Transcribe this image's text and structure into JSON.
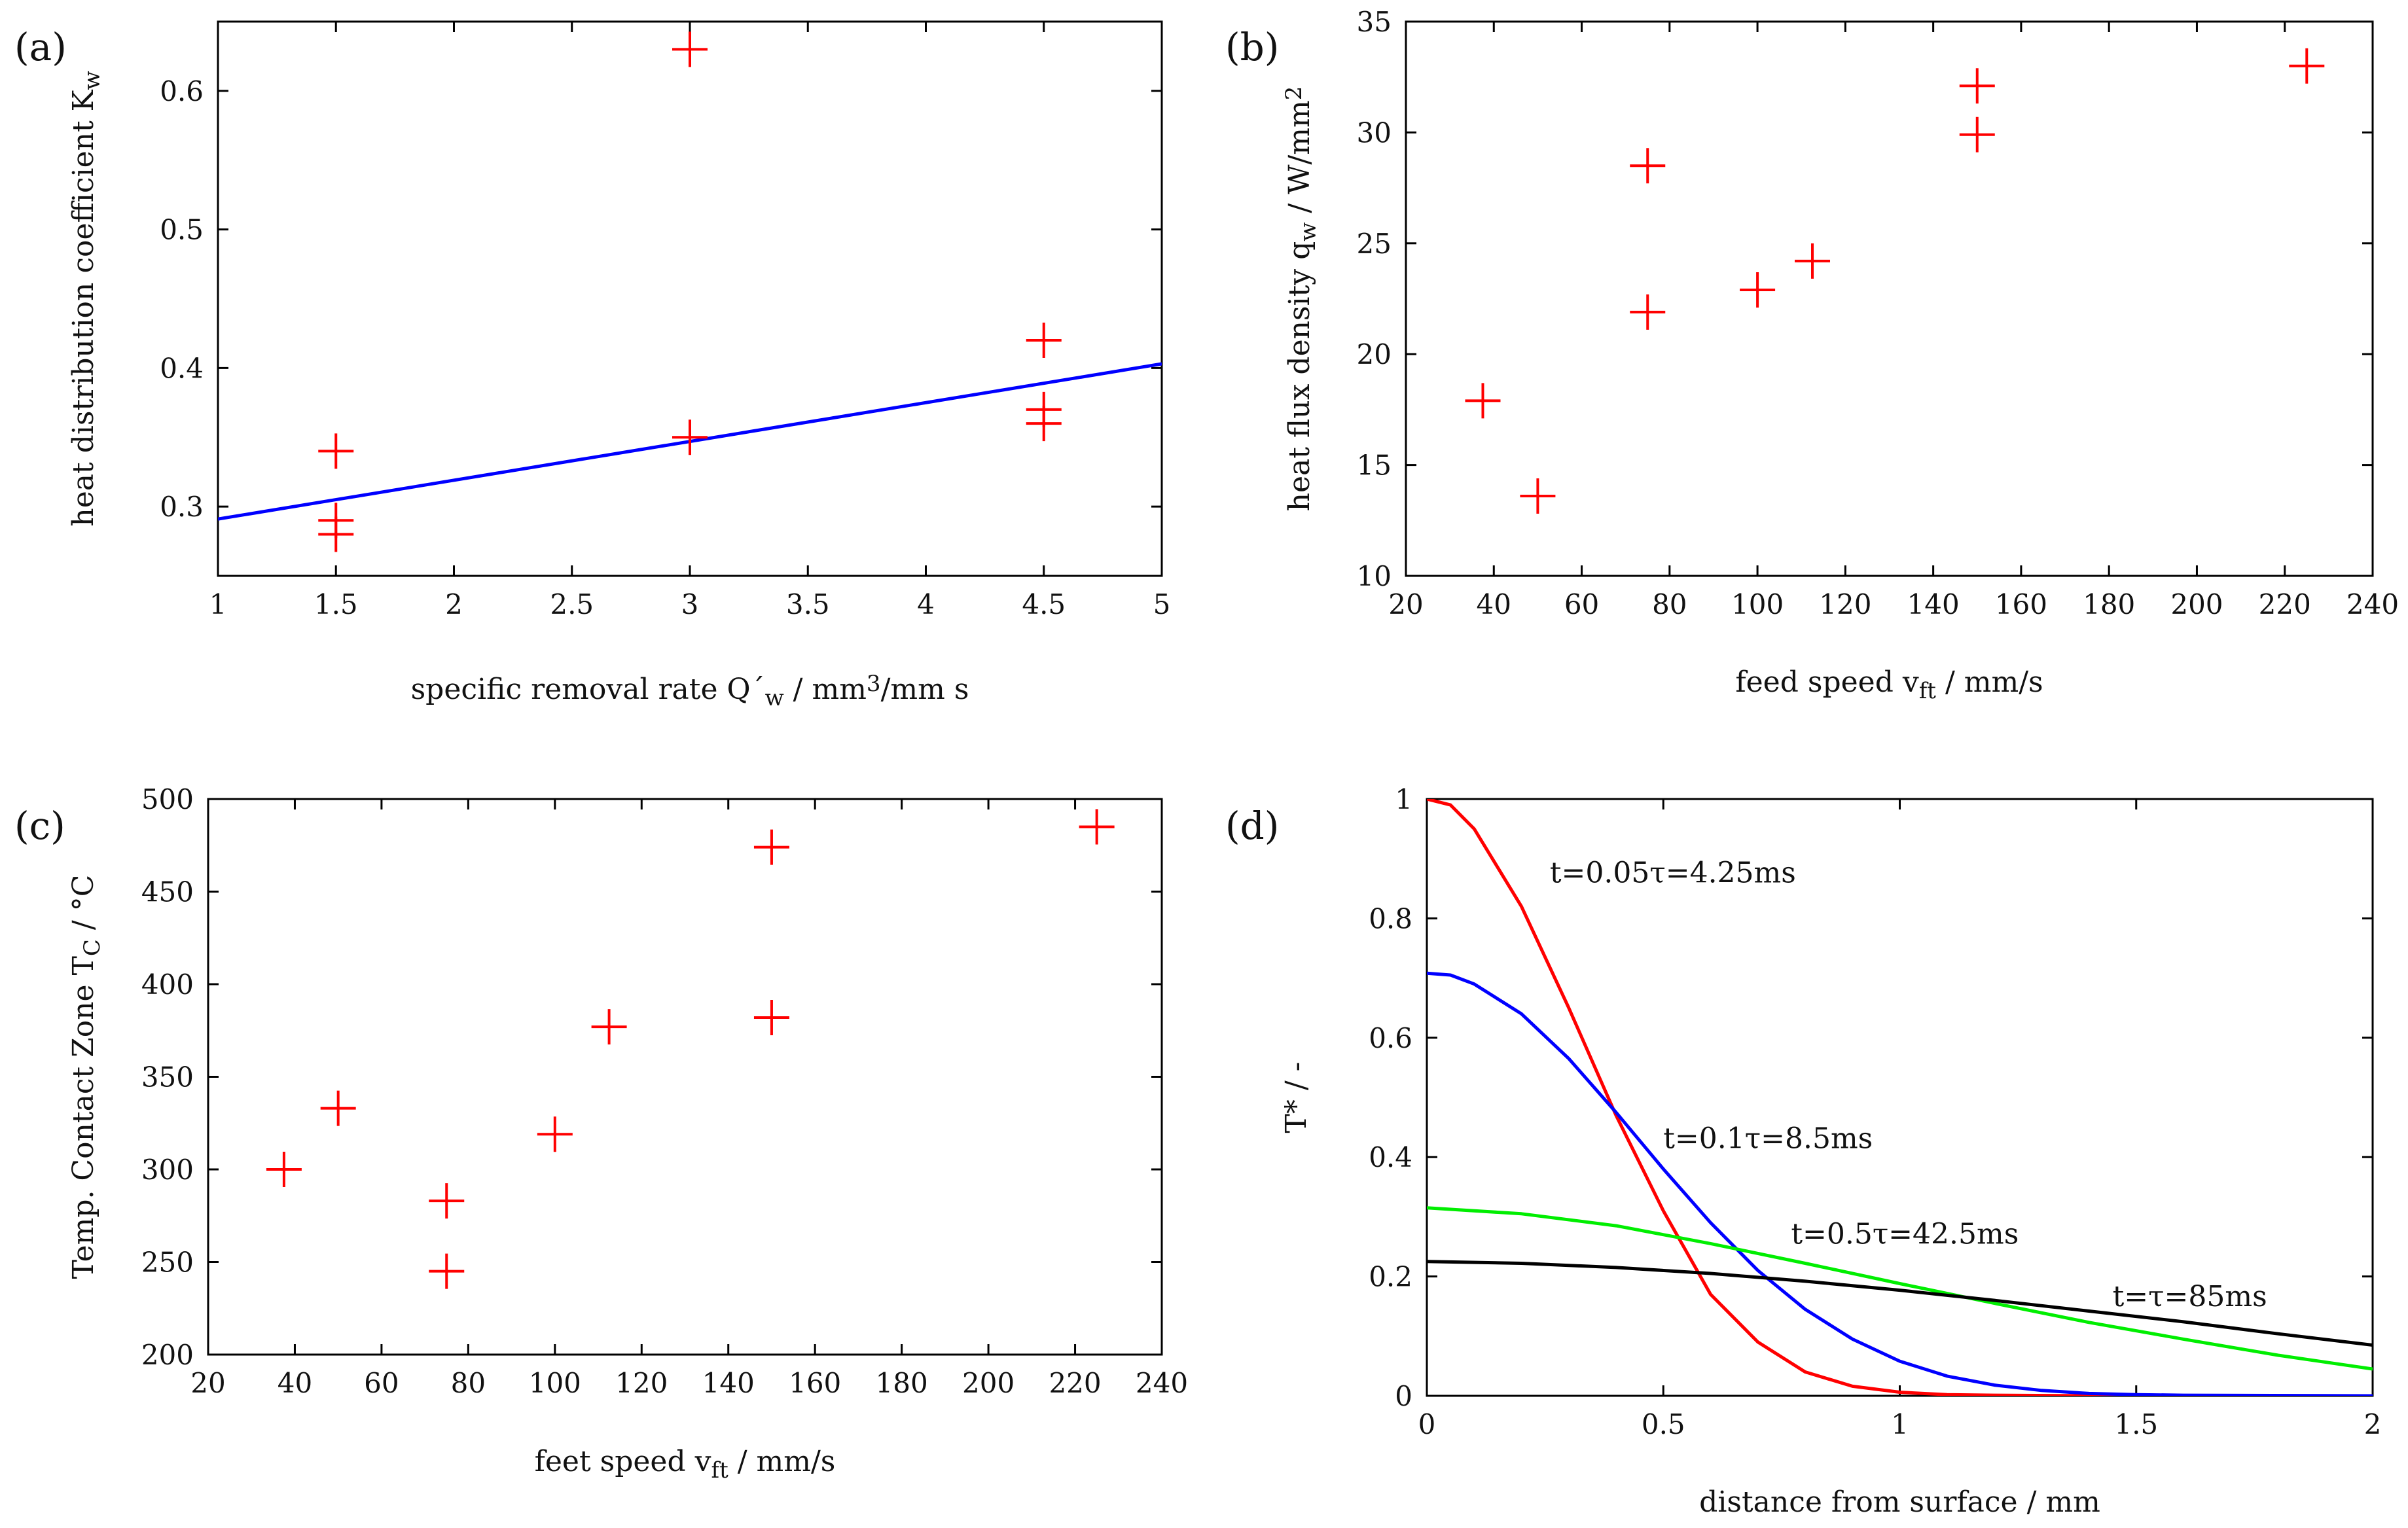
{
  "chart_data": [
    {
      "id": "a",
      "panel_label": "(a)",
      "type": "scatter",
      "title": "",
      "xlabel": "specific removal rate Q´w / mm3/mm s",
      "xlabel_parts": [
        "specific removal rate Q´",
        "w",
        " / mm",
        "3",
        "/mm s"
      ],
      "ylabel": "heat distribution coefficient Kw",
      "ylabel_parts": [
        "heat distribution coefficient K",
        "w"
      ],
      "xlim": [
        1,
        5
      ],
      "ylim": [
        0.25,
        0.65
      ],
      "xticks": [
        1,
        1.5,
        2,
        2.5,
        3,
        3.5,
        4,
        4.5,
        5
      ],
      "xtick_labels": [
        "1",
        "1.5",
        "2",
        "2.5",
        "3",
        "3.5",
        "4",
        "4.5",
        "5"
      ],
      "yticks": [
        0.3,
        0.4,
        0.5,
        0.6
      ],
      "ytick_labels": [
        "0.3",
        "0.4",
        "0.5",
        "0.6"
      ],
      "grid": false,
      "points": [
        {
          "x": 1.5,
          "y": 0.34
        },
        {
          "x": 1.5,
          "y": 0.29
        },
        {
          "x": 1.5,
          "y": 0.28
        },
        {
          "x": 3,
          "y": 0.63
        },
        {
          "x": 3,
          "y": 0.35
        },
        {
          "x": 4.5,
          "y": 0.42
        },
        {
          "x": 4.5,
          "y": 0.37
        },
        {
          "x": 4.5,
          "y": 0.36
        }
      ],
      "point_color": "#ff0000",
      "fit_line": {
        "x": [
          1,
          5
        ],
        "y": [
          0.291,
          0.403
        ],
        "color": "#0000ff"
      }
    },
    {
      "id": "b",
      "panel_label": "(b)",
      "type": "scatter",
      "title": "",
      "xlabel": "feed speed vft /  mm/s",
      "xlabel_parts": [
        "feed speed v",
        "ft",
        " /  mm/s"
      ],
      "ylabel": "heat flux density qw / W/mm2",
      "ylabel_parts": [
        "heat flux density q",
        "w",
        " / W/mm",
        "2"
      ],
      "xlim": [
        20,
        240
      ],
      "ylim": [
        10,
        35
      ],
      "xticks": [
        20,
        40,
        60,
        80,
        100,
        120,
        140,
        160,
        180,
        200,
        220,
        240
      ],
      "xtick_labels": [
        "20",
        "40",
        "60",
        "80",
        "100",
        "120",
        "140",
        "160",
        "180",
        "200",
        "220",
        "240"
      ],
      "yticks": [
        10,
        15,
        20,
        25,
        30,
        35
      ],
      "ytick_labels": [
        "10",
        "15",
        "20",
        "25",
        "30",
        "35"
      ],
      "grid": false,
      "points": [
        {
          "x": 37.5,
          "y": 17.9
        },
        {
          "x": 50,
          "y": 13.6
        },
        {
          "x": 75,
          "y": 28.5
        },
        {
          "x": 75,
          "y": 21.9
        },
        {
          "x": 100,
          "y": 22.9
        },
        {
          "x": 112.5,
          "y": 24.2
        },
        {
          "x": 150,
          "y": 32.1
        },
        {
          "x": 150,
          "y": 29.9
        },
        {
          "x": 225,
          "y": 33
        }
      ],
      "point_color": "#ff0000"
    },
    {
      "id": "c",
      "panel_label": "(c)",
      "type": "scatter",
      "title": "",
      "xlabel": "feet speed vft / mm/s",
      "xlabel_parts": [
        "feet speed v",
        "ft",
        " / mm/s"
      ],
      "ylabel": "Temp. Contact Zone TC / °C",
      "ylabel_parts": [
        "Temp. Contact Zone T",
        "C",
        " / °C"
      ],
      "xlim": [
        20,
        240
      ],
      "ylim": [
        200,
        500
      ],
      "xticks": [
        20,
        40,
        60,
        80,
        100,
        120,
        140,
        160,
        180,
        200,
        220,
        240
      ],
      "xtick_labels": [
        "20",
        "40",
        "60",
        "80",
        "100",
        "120",
        "140",
        "160",
        "180",
        "200",
        "220",
        "240"
      ],
      "yticks": [
        200,
        250,
        300,
        350,
        400,
        450,
        500
      ],
      "ytick_labels": [
        "200",
        "250",
        "300",
        "350",
        "400",
        "450",
        "500"
      ],
      "grid": false,
      "points": [
        {
          "x": 37.5,
          "y": 300
        },
        {
          "x": 50,
          "y": 333
        },
        {
          "x": 75,
          "y": 283
        },
        {
          "x": 75,
          "y": 245
        },
        {
          "x": 100,
          "y": 319
        },
        {
          "x": 112.5,
          "y": 377
        },
        {
          "x": 150,
          "y": 474
        },
        {
          "x": 150,
          "y": 382
        },
        {
          "x": 225,
          "y": 485
        }
      ],
      "point_color": "#ff0000"
    },
    {
      "id": "d",
      "panel_label": "(d)",
      "type": "line",
      "title": "",
      "xlabel": "distance from surface  /  mm",
      "ylabel": "T*  /  -",
      "xlim": [
        0,
        2
      ],
      "ylim": [
        0,
        1
      ],
      "xticks": [
        0,
        0.5,
        1,
        1.5,
        2
      ],
      "xtick_labels": [
        "0",
        "0.5",
        "1",
        "1.5",
        "2"
      ],
      "yticks": [
        0,
        0.2,
        0.4,
        0.6,
        0.8,
        1
      ],
      "ytick_labels": [
        "0",
        "0.2",
        "0.4",
        "0.6",
        "0.8",
        "1"
      ],
      "grid": false,
      "series": [
        {
          "name": "t=0.05τ=4.25ms",
          "color": "#ff0000",
          "x": [
            0,
            0.05,
            0.1,
            0.2,
            0.3,
            0.4,
            0.5,
            0.6,
            0.7,
            0.8,
            0.9,
            1.0,
            1.1,
            1.2,
            1.4,
            1.6,
            2.0
          ],
          "y": [
            1.0,
            0.99,
            0.95,
            0.82,
            0.65,
            0.47,
            0.31,
            0.17,
            0.09,
            0.04,
            0.016,
            0.006,
            0.002,
            0.001,
            0.0,
            0.0,
            0.0
          ],
          "label_anchor": {
            "x": 0.26,
            "y": 0.86
          }
        },
        {
          "name": "t=0.1τ=8.5ms",
          "color": "#0000ff",
          "x": [
            0,
            0.05,
            0.1,
            0.2,
            0.3,
            0.4,
            0.5,
            0.6,
            0.7,
            0.8,
            0.9,
            1.0,
            1.1,
            1.2,
            1.3,
            1.4,
            1.5,
            1.6,
            2.0
          ],
          "y": [
            0.708,
            0.705,
            0.69,
            0.64,
            0.565,
            0.475,
            0.38,
            0.29,
            0.21,
            0.145,
            0.095,
            0.058,
            0.033,
            0.018,
            0.009,
            0.004,
            0.002,
            0.001,
            0.0
          ],
          "label_anchor": {
            "x": 0.5,
            "y": 0.415
          }
        },
        {
          "name": "t=0.5τ=42.5ms",
          "color": "#00ee00",
          "x": [
            0,
            0.2,
            0.4,
            0.6,
            0.8,
            1.0,
            1.2,
            1.4,
            1.6,
            1.8,
            2.0
          ],
          "y": [
            0.315,
            0.305,
            0.285,
            0.255,
            0.222,
            0.188,
            0.155,
            0.123,
            0.095,
            0.068,
            0.045
          ],
          "label_anchor": {
            "x": 0.77,
            "y": 0.255
          }
        },
        {
          "name": "t=τ=85ms",
          "color": "#000000",
          "x": [
            0,
            0.2,
            0.4,
            0.6,
            0.8,
            1.0,
            1.2,
            1.4,
            1.6,
            1.8,
            2.0
          ],
          "y": [
            0.225,
            0.222,
            0.215,
            0.205,
            0.192,
            0.177,
            0.16,
            0.142,
            0.124,
            0.104,
            0.085
          ],
          "label_anchor": {
            "x": 1.45,
            "y": 0.15
          }
        }
      ]
    }
  ]
}
